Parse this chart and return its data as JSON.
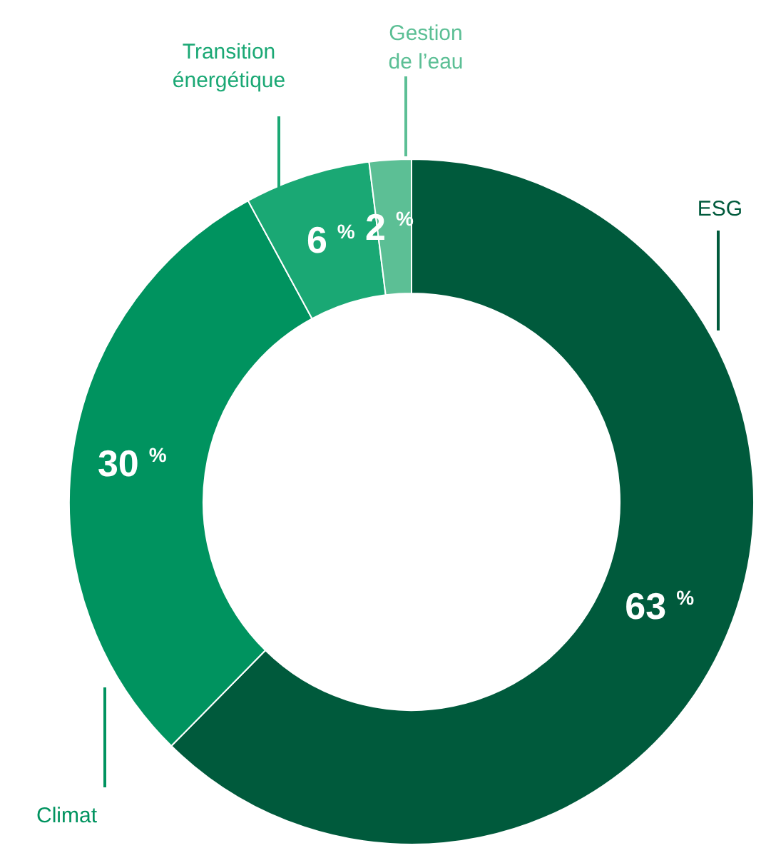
{
  "chart_data": {
    "type": "donut",
    "categories": [
      "ESG",
      "Climat",
      "Transition\nénergétique",
      "Gestion\nde l’eau"
    ],
    "values": [
      63,
      30,
      6,
      2
    ],
    "colors": [
      "#005a3c",
      "#00935f",
      "#1aa874",
      "#5cbf95"
    ],
    "value_labels": [
      "63 %",
      "30 %",
      "6 %",
      "2 %"
    ]
  }
}
